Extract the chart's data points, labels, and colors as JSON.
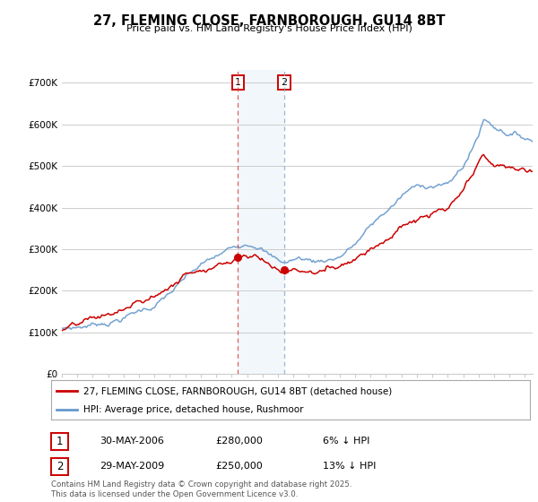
{
  "title": "27, FLEMING CLOSE, FARNBOROUGH, GU14 8BT",
  "subtitle": "Price paid vs. HM Land Registry's House Price Index (HPI)",
  "ylim": [
    0,
    730000
  ],
  "xlim_start": 1995.0,
  "xlim_end": 2025.5,
  "ytick_labels": [
    "£0",
    "£100K",
    "£200K",
    "£300K",
    "£400K",
    "£500K",
    "£600K",
    "£700K"
  ],
  "ytick_values": [
    0,
    100000,
    200000,
    300000,
    400000,
    500000,
    600000,
    700000
  ],
  "sale1_date": 2006.41,
  "sale1_price": 280000,
  "sale1_text": "30-MAY-2006",
  "sale1_pct": "6% ↓ HPI",
  "sale2_date": 2009.41,
  "sale2_price": 250000,
  "sale2_text": "29-MAY-2009",
  "sale2_pct": "13% ↓ HPI",
  "legend_red": "27, FLEMING CLOSE, FARNBOROUGH, GU14 8BT (detached house)",
  "legend_blue": "HPI: Average price, detached house, Rushmoor",
  "footer": "Contains HM Land Registry data © Crown copyright and database right 2025.\nThis data is licensed under the Open Government Licence v3.0.",
  "red_color": "#cc0000",
  "blue_color": "#6699cc",
  "shade_color": "#cce0f0",
  "vline1_color": "#dd4444",
  "vline2_color": "#88aacc",
  "background_color": "#ffffff",
  "grid_color": "#cccccc",
  "fig_width": 6.0,
  "fig_height": 5.6,
  "dpi": 100
}
